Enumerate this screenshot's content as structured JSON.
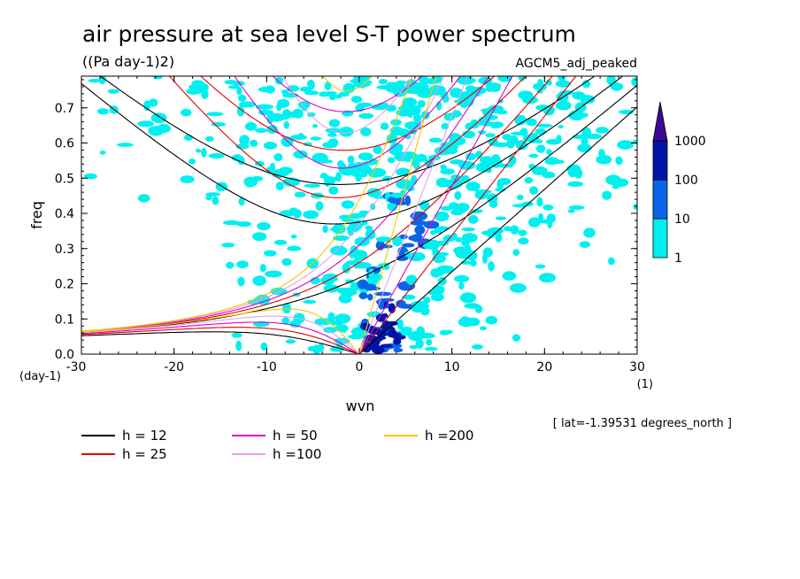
{
  "chart_data": {
    "type": "heatmap",
    "title": "air pressure at sea level S-T power spectrum",
    "units": "((Pa day-1)2)",
    "model_label": "AGCM5_adj_peaked",
    "xlabel": "wvn",
    "ylabel": "freq",
    "x_unit": "(1)",
    "y_unit": "(day-1)",
    "xlim": [
      -30,
      30
    ],
    "ylim": [
      0,
      0.79
    ],
    "x_ticks": [
      "-30",
      "-20",
      "-10",
      "0",
      "10",
      "20",
      "30"
    ],
    "y_ticks": [
      "0.0",
      "0.1",
      "0.2",
      "0.3",
      "0.4",
      "0.5",
      "0.6",
      "0.7"
    ],
    "colorbar": {
      "levels": [
        "1",
        "10",
        "100",
        "1000"
      ],
      "colors": [
        "#00f0f0",
        "#0a64e8",
        "#0014a8",
        "#3c0a96"
      ]
    },
    "annotation": "[ lat=-1.39531 degrees_north ]",
    "dispersion_curves": [
      {
        "label": "h = 12",
        "h": 12,
        "color": "#000000"
      },
      {
        "label": "h = 25",
        "h": 25,
        "color": "#e00000"
      },
      {
        "label": "h = 50",
        "h": 50,
        "color": "#e000c8"
      },
      {
        "label": "h =100",
        "h": 100,
        "color": "#e8a0e8"
      },
      {
        "label": "h =200",
        "h": 200,
        "color": "#f0c800"
      }
    ]
  }
}
